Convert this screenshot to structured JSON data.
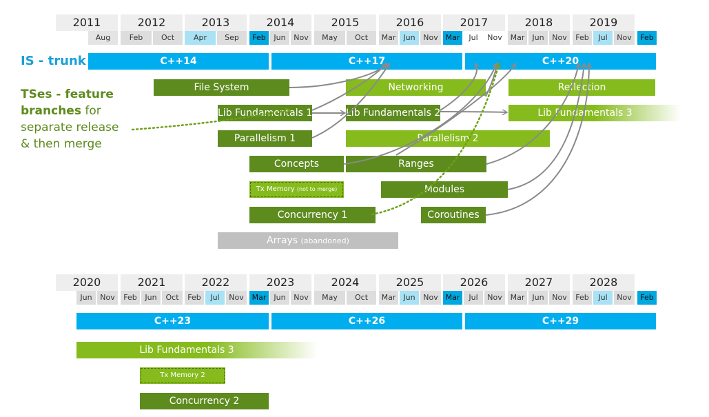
{
  "labels": {
    "is_trunk": "IS - trunk",
    "ts_bold1": "TSes - feature",
    "ts_bold2": "branches",
    "ts_rest1": "for",
    "ts_rest2": "separate release",
    "ts_rest3": "& then merge"
  },
  "top": {
    "years": [
      "2011",
      "2012",
      "2013",
      "2014",
      "2015",
      "2016",
      "2017",
      "2018",
      "2019"
    ],
    "months": [
      "Aug",
      "Feb",
      "Oct",
      "Apr",
      "Sep",
      "Feb",
      "Jun",
      "Nov",
      "May",
      "Oct",
      "Mar",
      "Jun",
      "Nov",
      "Mar",
      "Jul",
      "Nov",
      "Mar",
      "Jun",
      "Nov",
      "Feb",
      "Jul",
      "Nov",
      "Feb"
    ],
    "trunk": [
      "C++14",
      "C++17",
      "C++20"
    ],
    "branches": {
      "file_system": "File System",
      "networking": "Networking",
      "reflection": "Reflection",
      "lib_fund_1": "Lib Fundamentals 1",
      "lib_fund_2": "Lib Fundamentals 2",
      "lib_fund_3": "Lib Fundamentals 3",
      "parallelism_1": "Parallelism 1",
      "parallelism_2": "Parallelism 2",
      "concepts": "Concepts",
      "ranges": "Ranges",
      "tx_memory": "Tx Memory",
      "tx_memory_note": "(not to merge)",
      "modules": "Modules",
      "concurrency_1": "Concurrency 1",
      "coroutines": "Coroutines",
      "arrays": "Arrays",
      "arrays_note": "(abandoned)"
    }
  },
  "bottom": {
    "years": [
      "2020",
      "2021",
      "2022",
      "2023",
      "2024",
      "2025",
      "2026",
      "2027",
      "2028"
    ],
    "months": [
      "Jun",
      "Nov",
      "Feb",
      "Jun",
      "Oct",
      "Feb",
      "Jul",
      "Nov",
      "Mar",
      "Jun",
      "Nov",
      "May",
      "Oct",
      "Mar",
      "Jun",
      "Nov",
      "Mar",
      "Jul",
      "Nov",
      "Mar",
      "Jun",
      "Nov",
      "Feb",
      "Jul",
      "Nov",
      "Feb"
    ],
    "trunk": [
      "C++23",
      "C++26",
      "C++29"
    ],
    "branches": {
      "lib_fund_3": "Lib Fundamentals 3",
      "tx_memory_2": "Tx Memory 2",
      "concurrency_2": "Concurrency 2"
    }
  }
}
